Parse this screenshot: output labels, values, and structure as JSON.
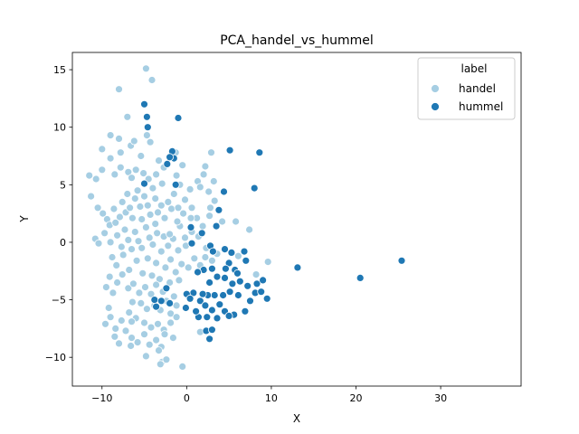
{
  "chart_data": {
    "type": "scatter",
    "title": "PCA_handel_vs_hummel",
    "xlabel": "X",
    "ylabel": "Y",
    "xlim": [
      -13.5,
      39.5
    ],
    "ylim": [
      -12.5,
      16.5
    ],
    "xticks": [
      -10,
      0,
      10,
      20,
      30
    ],
    "yticks": [
      -10,
      -5,
      0,
      5,
      10,
      15
    ],
    "grid": false,
    "legend": {
      "title": "label",
      "placement": "top-right",
      "entries": [
        {
          "name": "handel",
          "color": "#a6cee3"
        },
        {
          "name": "hummel",
          "color": "#1f78b4"
        }
      ]
    },
    "series": [
      {
        "name": "handel",
        "color": "#a6cee3",
        "points": [
          [
            -4.8,
            15.1
          ],
          [
            -4.1,
            14.1
          ],
          [
            -8.0,
            13.3
          ],
          [
            -7.0,
            10.9
          ],
          [
            -10.0,
            8.1
          ],
          [
            -9.0,
            9.3
          ],
          [
            -8.0,
            9.0
          ],
          [
            -6.6,
            8.4
          ],
          [
            -6.2,
            8.8
          ],
          [
            -4.7,
            9.3
          ],
          [
            -4.3,
            8.7
          ],
          [
            -2.7,
            6.5
          ],
          [
            -3.3,
            7.1
          ],
          [
            -5.4,
            7.5
          ],
          [
            -7.8,
            7.8
          ],
          [
            -9.0,
            7.3
          ],
          [
            -11.5,
            5.8
          ],
          [
            -10.7,
            5.5
          ],
          [
            -10.0,
            6.3
          ],
          [
            -8.5,
            5.9
          ],
          [
            -7.8,
            6.5
          ],
          [
            -6.9,
            6.1
          ],
          [
            -6.5,
            5.6
          ],
          [
            -6.0,
            6.3
          ],
          [
            -5.1,
            6.0
          ],
          [
            -4.5,
            5.5
          ],
          [
            -3.6,
            5.9
          ],
          [
            -2.9,
            5.1
          ],
          [
            -1.2,
            5.8
          ],
          [
            -0.8,
            5.0
          ],
          [
            -11.3,
            4.0
          ],
          [
            -10.5,
            3.0
          ],
          [
            -9.9,
            2.5
          ],
          [
            -9.4,
            2.0
          ],
          [
            -9.1,
            1.5
          ],
          [
            -8.6,
            2.9
          ],
          [
            -8.4,
            1.7
          ],
          [
            -7.9,
            2.2
          ],
          [
            -7.6,
            3.5
          ],
          [
            -7.2,
            2.6
          ],
          [
            -7.0,
            4.2
          ],
          [
            -6.7,
            3.0
          ],
          [
            -6.4,
            2.1
          ],
          [
            -6.1,
            3.8
          ],
          [
            -5.8,
            4.5
          ],
          [
            -5.5,
            3.1
          ],
          [
            -5.3,
            2.0
          ],
          [
            -5.0,
            4.0
          ],
          [
            -4.6,
            3.2
          ],
          [
            -4.3,
            2.4
          ],
          [
            -4.0,
            4.7
          ],
          [
            -3.7,
            3.8
          ],
          [
            -3.4,
            2.6
          ],
          [
            -3.0,
            3.2
          ],
          [
            -2.6,
            2.1
          ],
          [
            -2.2,
            3.5
          ],
          [
            -1.8,
            2.9
          ],
          [
            -1.5,
            4.2
          ],
          [
            -1.0,
            3.0
          ],
          [
            -0.4,
            2.5
          ],
          [
            -10.8,
            0.3
          ],
          [
            -9.7,
            0.8
          ],
          [
            -9.0,
            0.0
          ],
          [
            -8.2,
            0.6
          ],
          [
            -7.7,
            -0.4
          ],
          [
            -7.3,
            1.1
          ],
          [
            -6.9,
            0.2
          ],
          [
            -6.5,
            -0.6
          ],
          [
            -6.1,
            0.9
          ],
          [
            -5.7,
            0.1
          ],
          [
            -5.3,
            -0.5
          ],
          [
            -4.8,
            1.3
          ],
          [
            -4.4,
            0.4
          ],
          [
            -4.0,
            -0.2
          ],
          [
            -3.5,
            0.8
          ],
          [
            -3.0,
            -0.8
          ],
          [
            -2.7,
            0.5
          ],
          [
            -2.2,
            -0.3
          ],
          [
            -1.6,
            0.3
          ],
          [
            -1.0,
            -0.7
          ],
          [
            -0.2,
            0.4
          ],
          [
            0.6,
            0.9
          ],
          [
            -10.4,
            -0.1
          ],
          [
            -8.8,
            -1.3
          ],
          [
            -8.3,
            -2.0
          ],
          [
            -7.5,
            -1.1
          ],
          [
            -6.8,
            -2.4
          ],
          [
            -5.9,
            -1.6
          ],
          [
            -5.2,
            -2.7
          ],
          [
            -4.6,
            -1.4
          ],
          [
            -4.1,
            -2.9
          ],
          [
            -3.6,
            -1.8
          ],
          [
            -3.2,
            -3.2
          ],
          [
            -2.5,
            -2.2
          ],
          [
            -1.9,
            -1.5
          ],
          [
            -1.3,
            -2.6
          ],
          [
            -0.6,
            -1.9
          ],
          [
            0.2,
            -2.2
          ],
          [
            0.9,
            -1.4
          ],
          [
            1.6,
            -2.0
          ],
          [
            2.2,
            -1.3
          ],
          [
            3.0,
            -1.6
          ],
          [
            3.6,
            -1.0
          ],
          [
            -9.1,
            -3.0
          ],
          [
            -8.2,
            -3.5
          ],
          [
            -7.6,
            -2.8
          ],
          [
            -6.9,
            -4.0
          ],
          [
            -6.3,
            -3.6
          ],
          [
            -5.6,
            -4.4
          ],
          [
            -4.9,
            -3.9
          ],
          [
            -4.2,
            -4.5
          ],
          [
            -3.6,
            -3.7
          ],
          [
            -2.8,
            -4.3
          ],
          [
            -2.0,
            -3.5
          ],
          [
            -1.5,
            -4.7
          ],
          [
            -0.9,
            -3.3
          ],
          [
            -9.5,
            -3.9
          ],
          [
            -8.7,
            -4.4
          ],
          [
            -6.4,
            -5.2
          ],
          [
            -5.4,
            -5.3
          ],
          [
            -4.7,
            -5.8
          ],
          [
            -3.8,
            -5.5
          ],
          [
            -3.1,
            -5.9
          ],
          [
            -2.4,
            -5.1
          ],
          [
            -1.9,
            -6.2
          ],
          [
            -1.2,
            -5.5
          ],
          [
            -9.2,
            -5.7
          ],
          [
            -9.0,
            -6.5
          ],
          [
            -8.4,
            -7.5
          ],
          [
            -7.7,
            -6.8
          ],
          [
            -6.8,
            -6.1
          ],
          [
            -6.0,
            -6.6
          ],
          [
            -5.0,
            -7.0
          ],
          [
            -4.2,
            -7.4
          ],
          [
            -3.4,
            -7.1
          ],
          [
            -2.7,
            -7.6
          ],
          [
            -1.9,
            -7.0
          ],
          [
            -1.2,
            -6.5
          ],
          [
            -9.6,
            -7.1
          ],
          [
            -8.5,
            -8.2
          ],
          [
            -8.0,
            -8.8
          ],
          [
            -7.2,
            -7.7
          ],
          [
            -6.5,
            -8.3
          ],
          [
            -5.8,
            -8.7
          ],
          [
            -5.0,
            -8.0
          ],
          [
            -4.4,
            -8.9
          ],
          [
            -3.6,
            -8.5
          ],
          [
            -3.0,
            -9.1
          ],
          [
            -2.6,
            -8.0
          ],
          [
            -1.6,
            -8.3
          ],
          [
            -6.6,
            -9.0
          ],
          [
            -4.8,
            -9.9
          ],
          [
            -3.3,
            -9.4
          ],
          [
            -2.9,
            -10.4
          ],
          [
            -2.4,
            -10.2
          ],
          [
            -3.1,
            -10.6
          ],
          [
            -0.5,
            -10.8
          ],
          [
            1.6,
            -7.8
          ],
          [
            -6.5,
            -6.9
          ],
          [
            0.4,
            4.6
          ],
          [
            1.3,
            5.3
          ],
          [
            2.0,
            5.9
          ],
          [
            2.6,
            4.4
          ],
          [
            2.9,
            7.8
          ],
          [
            1.6,
            4.8
          ],
          [
            -0.5,
            6.7
          ],
          [
            -1.3,
            7.8
          ],
          [
            2.2,
            6.6
          ],
          [
            3.3,
            3.6
          ],
          [
            -0.2,
            3.7
          ],
          [
            0.6,
            3.0
          ],
          [
            1.2,
            2.1
          ],
          [
            2.7,
            2.3
          ],
          [
            4.2,
            1.8
          ],
          [
            5.8,
            1.8
          ],
          [
            3.2,
            5.3
          ],
          [
            2.8,
            3.0
          ],
          [
            -0.1,
            -0.3
          ],
          [
            1.4,
            0.5
          ],
          [
            2.3,
            -0.5
          ],
          [
            9.6,
            -1.7
          ],
          [
            7.4,
            1.1
          ],
          [
            8.2,
            -2.8
          ],
          [
            6.1,
            -1.2
          ],
          [
            -2.0,
            0.7
          ],
          [
            -0.8,
            1.4
          ],
          [
            1.9,
            1.4
          ],
          [
            -1.1,
            1.8
          ],
          [
            0.5,
            2.1
          ],
          [
            -3.7,
            1.6
          ]
        ]
      },
      {
        "name": "hummel",
        "color": "#1f78b4",
        "points": [
          [
            -5.0,
            12.0
          ],
          [
            -4.7,
            10.9
          ],
          [
            -1.0,
            10.8
          ],
          [
            -4.6,
            10.0
          ],
          [
            -1.7,
            7.9
          ],
          [
            -1.5,
            7.3
          ],
          [
            -2.0,
            7.4
          ],
          [
            -2.3,
            6.8
          ],
          [
            -5.0,
            5.1
          ],
          [
            -1.3,
            5.0
          ],
          [
            -2.4,
            -4.0
          ],
          [
            -3.8,
            -5.0
          ],
          [
            -3.6,
            -5.6
          ],
          [
            -3.0,
            -5.1
          ],
          [
            -2.0,
            -5.3
          ],
          [
            5.1,
            8.0
          ],
          [
            8.6,
            7.8
          ],
          [
            8.0,
            4.7
          ],
          [
            4.4,
            4.4
          ],
          [
            3.8,
            2.8
          ],
          [
            3.5,
            1.4
          ],
          [
            0.5,
            1.3
          ],
          [
            1.8,
            0.8
          ],
          [
            0.6,
            -0.1
          ],
          [
            2.8,
            -0.3
          ],
          [
            3.1,
            -0.8
          ],
          [
            4.5,
            -0.6
          ],
          [
            5.3,
            -0.9
          ],
          [
            6.8,
            -0.8
          ],
          [
            7.0,
            -1.6
          ],
          [
            5.0,
            -1.8
          ],
          [
            5.7,
            -2.4
          ],
          [
            6.0,
            -2.7
          ],
          [
            4.6,
            -2.3
          ],
          [
            3.0,
            -2.3
          ],
          [
            2.0,
            -2.4
          ],
          [
            1.3,
            -2.6
          ],
          [
            2.7,
            -3.5
          ],
          [
            3.6,
            -3.0
          ],
          [
            4.5,
            -3.1
          ],
          [
            5.4,
            -3.6
          ],
          [
            6.3,
            -3.4
          ],
          [
            7.2,
            -3.8
          ],
          [
            8.3,
            -3.6
          ],
          [
            9.0,
            -3.3
          ],
          [
            8.1,
            -4.4
          ],
          [
            8.8,
            -4.3
          ],
          [
            9.5,
            -4.9
          ],
          [
            7.5,
            -5.1
          ],
          [
            6.1,
            -4.6
          ],
          [
            5.1,
            -4.3
          ],
          [
            4.3,
            -4.6
          ],
          [
            3.3,
            -4.6
          ],
          [
            2.5,
            -4.6
          ],
          [
            1.9,
            -4.5
          ],
          [
            0.8,
            -4.4
          ],
          [
            0.0,
            -4.5
          ],
          [
            1.6,
            -5.1
          ],
          [
            2.2,
            -5.5
          ],
          [
            3.0,
            -5.9
          ],
          [
            3.9,
            -5.4
          ],
          [
            4.5,
            -6.0
          ],
          [
            5.6,
            -6.3
          ],
          [
            5.0,
            -6.4
          ],
          [
            6.9,
            -6.0
          ],
          [
            3.6,
            -6.6
          ],
          [
            2.4,
            -6.5
          ],
          [
            1.4,
            -6.5
          ],
          [
            2.3,
            -7.7
          ],
          [
            3.0,
            -7.6
          ],
          [
            2.7,
            -8.4
          ],
          [
            1.1,
            -6.0
          ],
          [
            0.4,
            -4.9
          ],
          [
            -0.1,
            -5.7
          ],
          [
            13.1,
            -2.2
          ],
          [
            20.5,
            -3.1
          ],
          [
            25.4,
            -1.6
          ]
        ]
      }
    ]
  }
}
